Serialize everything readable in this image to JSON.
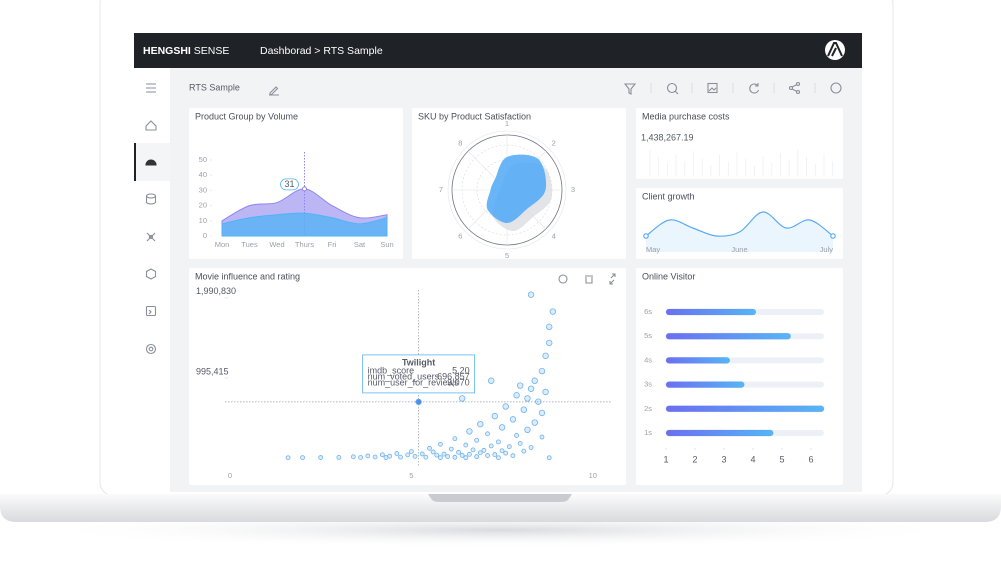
{
  "header": {
    "brand": [
      "HENGSHI",
      "SENSE"
    ],
    "breadcrumb": "Dashborad > RTS Sample"
  },
  "dashboard_title": "RTS Sample",
  "chart_data": [
    {
      "type": "area",
      "title": "Product Group by Volume",
      "categories": [
        "Mon",
        "Tues",
        "Wed",
        "Thurs",
        "Fri",
        "Sat",
        "Sun"
      ],
      "series": [
        {
          "color": "#8f86ee",
          "values": [
            10,
            20,
            22,
            31,
            20,
            12,
            14
          ],
          "value_labels": [
            null,
            null,
            null,
            "31",
            null,
            null,
            null
          ]
        },
        {
          "color": "#4fb3f6",
          "values": [
            8,
            12,
            14,
            15,
            12,
            8,
            12
          ]
        }
      ],
      "ylim": [
        0,
        55
      ],
      "yticks": [
        0,
        10,
        20,
        30,
        40,
        50
      ]
    },
    {
      "type": "radar",
      "title": "SKU by Product Satisfaction",
      "categories": [
        "1",
        "2",
        "3",
        "4",
        "5",
        "6",
        "7",
        "8"
      ],
      "values": [
        6,
        8,
        7,
        5,
        6,
        5,
        3,
        3
      ],
      "color": "#4fa8f7",
      "rlim": [
        0,
        10
      ]
    },
    {
      "type": "kpi",
      "title": "Media purchase costs",
      "values": [
        1438267.19
      ],
      "value_labels": [
        "1,438,267.19"
      ]
    },
    {
      "type": "line",
      "title": "Client growth",
      "categories": [
        "May",
        null,
        null,
        null,
        "June",
        null,
        null,
        null,
        "July"
      ],
      "values": [
        3,
        5,
        4,
        3,
        3.5,
        6,
        4,
        5,
        3
      ],
      "color": "#5aaaf2"
    },
    {
      "type": "scatter",
      "title": "Movie influence and rating",
      "color": "#6fb2ee",
      "x": [
        8.3,
        8.9,
        8.8,
        8.8,
        8.7,
        8.6,
        8.4,
        7.2,
        8.0,
        8.3,
        8.7,
        7.9,
        8.2,
        6.4,
        8.5,
        5.2,
        7.6,
        8.1,
        8.6,
        7.3,
        7.8,
        8.4,
        6.9,
        7.5,
        8.2,
        6.6,
        7.1,
        7.9,
        8.6,
        6.2,
        6.8,
        7.4,
        8.0,
        5.8,
        6.5,
        7.2,
        7.7,
        8.3,
        5.5,
        6.1,
        6.7,
        7.0,
        7.5,
        8.1,
        5.0,
        5.6,
        6.3,
        6.9,
        7.6,
        4.6,
        5.3,
        5.9,
        6.6,
        7.3,
        4.2,
        4.9,
        5.7,
        6.4,
        7.1,
        7.8,
        3.8,
        4.4,
        5.1,
        6.0,
        6.8,
        3.4,
        4.0,
        4.7,
        5.4,
        6.2,
        3.0,
        3.6,
        2.5,
        2.0,
        1.6,
        4.3,
        5.8,
        6.5,
        7.4,
        8.8
      ],
      "values": [
        2030000,
        1820000,
        1630000,
        1430000,
        1270000,
        1080000,
        960000,
        960000,
        900000,
        860000,
        820000,
        780000,
        740000,
        740000,
        700000,
        696857,
        640000,
        600000,
        560000,
        520000,
        480000,
        440000,
        420000,
        380000,
        350000,
        330000,
        300000,
        280000,
        260000,
        240000,
        220000,
        200000,
        180000,
        170000,
        160000,
        150000,
        140000,
        130000,
        120000,
        110000,
        100000,
        95000,
        90000,
        85000,
        80000,
        75000,
        70000,
        65000,
        60000,
        55000,
        50000,
        48000,
        45000,
        42000,
        40000,
        38000,
        35000,
        32000,
        30000,
        28000,
        25000,
        22000,
        20000,
        18000,
        16000,
        14000,
        12000,
        10000,
        9000,
        8000,
        7000,
        6000,
        5000,
        4000,
        3000,
        5000,
        4000,
        3500,
        3000,
        2500
      ],
      "xlim": [
        0,
        10.2
      ],
      "xticks": [
        0,
        5,
        10
      ],
      "ylim": [
        -100000,
        2150000
      ],
      "yticks": [
        {
          "value": 995415,
          "label": "995,415"
        },
        {
          "value": 1990830,
          "label": "1,990,830"
        }
      ],
      "tooltip": {
        "title": "Twilight",
        "rows": [
          {
            "label": "imdb_score",
            "value": "5.20"
          },
          {
            "label": "num_voted_users",
            "value": "696,857"
          },
          {
            "label": "num_user_for_reviews",
            "value": "3,070"
          }
        ]
      }
    },
    {
      "type": "hbar",
      "title": "Online Visitor",
      "categories": [
        "1s",
        "2s",
        "3s",
        "4s",
        "5s",
        "6s"
      ],
      "values": [
        4.7,
        6.45,
        3.7,
        3.2,
        5.3,
        4.1
      ],
      "color": "#6b7cf0",
      "xlim": [
        1,
        6.45
      ],
      "xticks": [
        1,
        2,
        3,
        4,
        5,
        6
      ]
    }
  ]
}
